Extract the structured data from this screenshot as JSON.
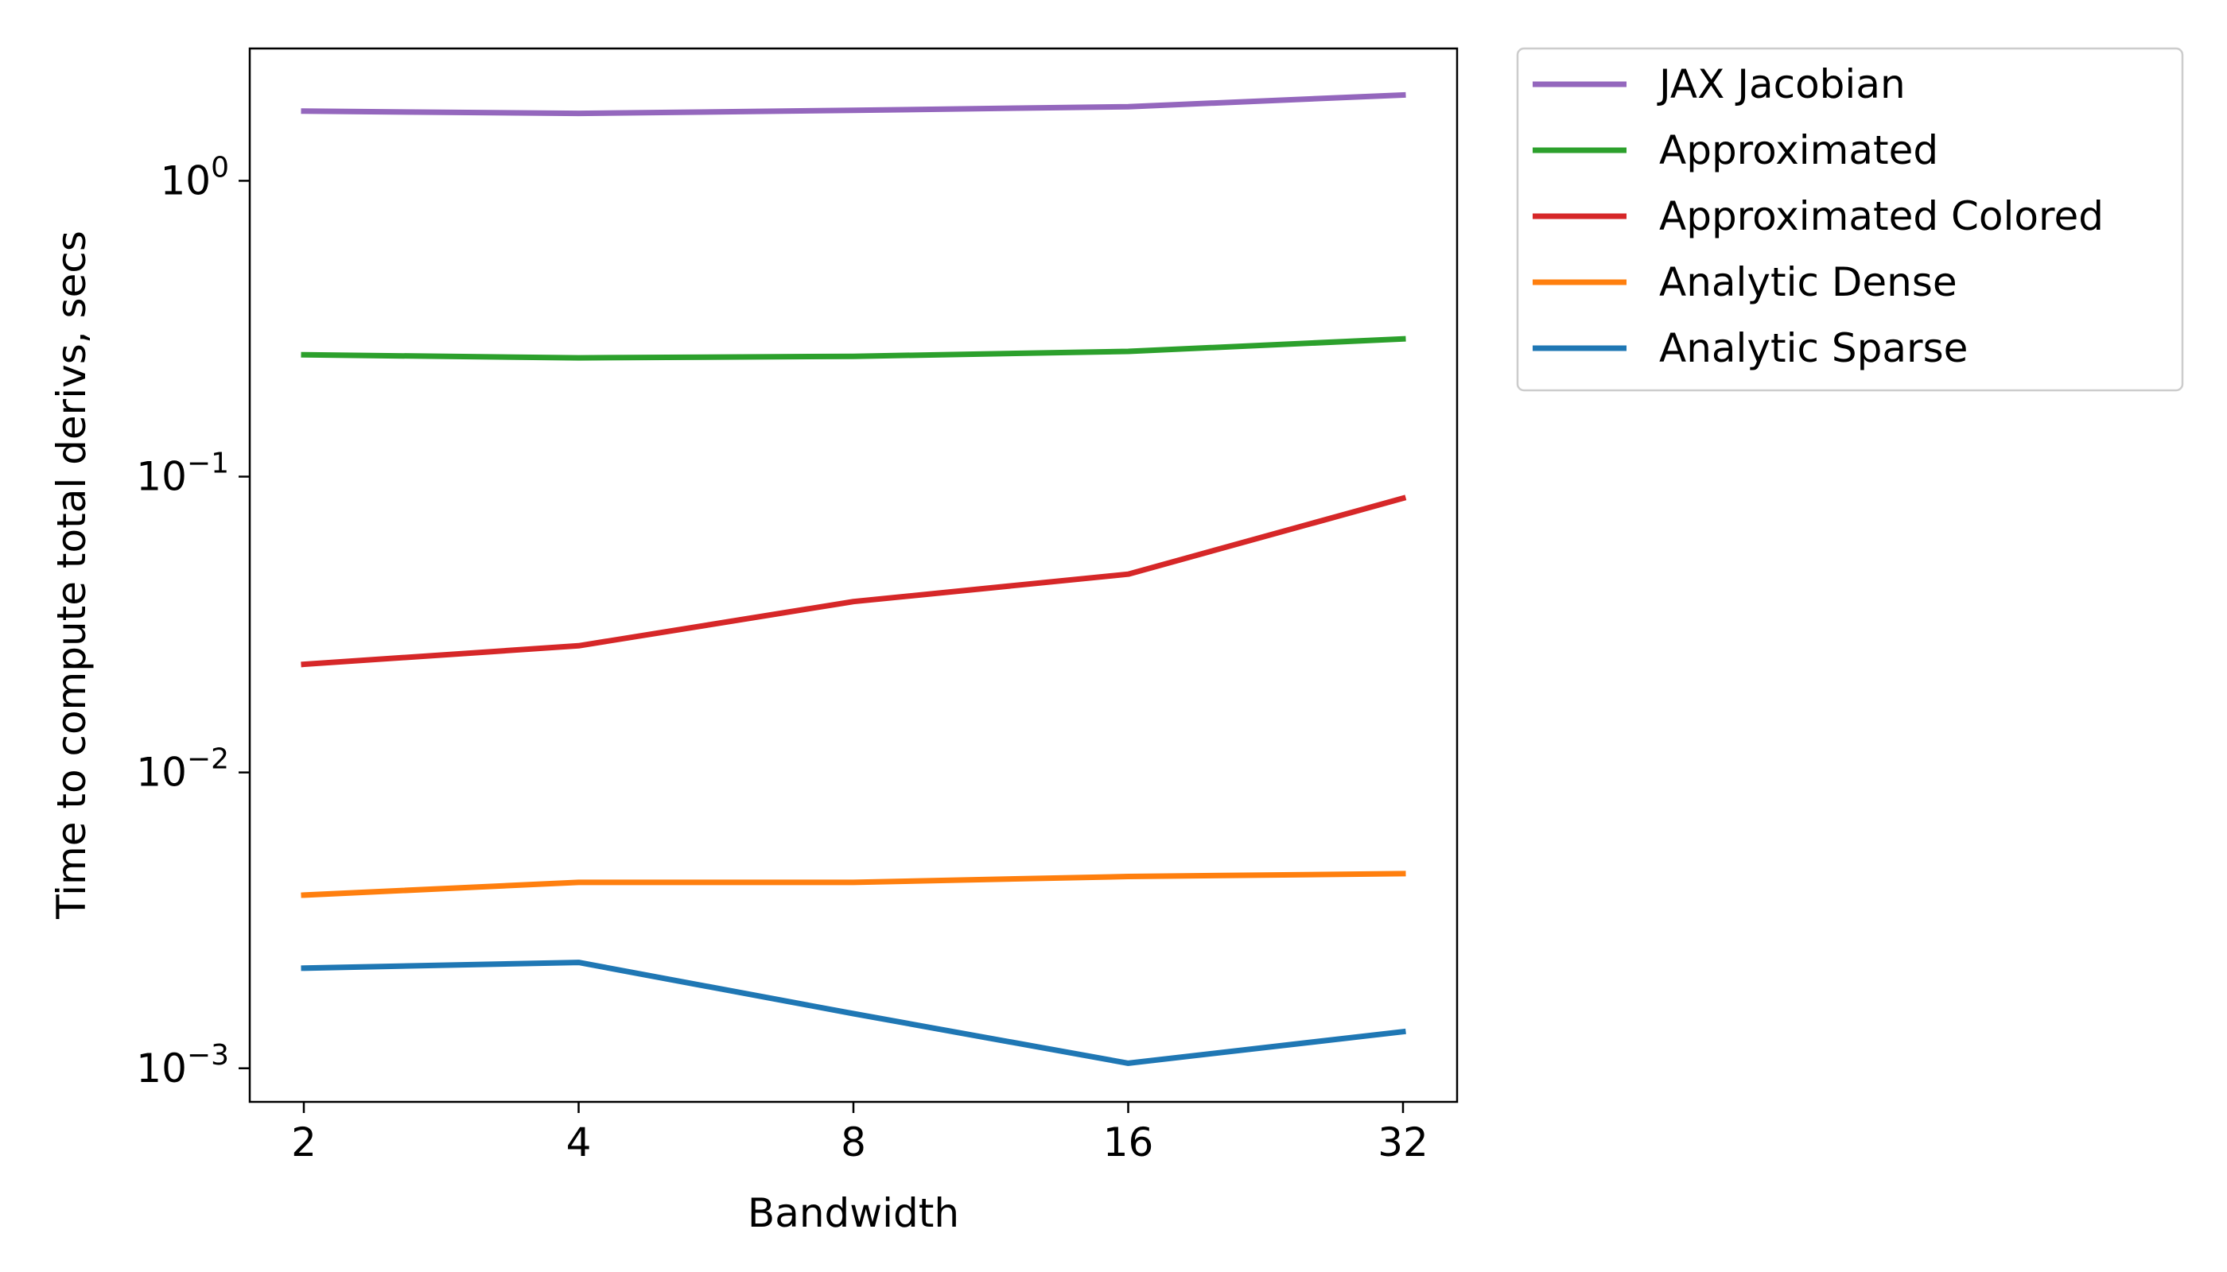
{
  "chart_data": {
    "type": "line",
    "title": "",
    "xlabel": "Bandwidth",
    "ylabel": "Time to compute total derivs, secs",
    "yscale": "log",
    "x": [
      2,
      4,
      8,
      16,
      32
    ],
    "x_tick_labels": [
      "2",
      "4",
      "8",
      "16",
      "32"
    ],
    "y_ticks": [
      {
        "value": 1,
        "base": "10",
        "exp": "0"
      },
      {
        "value": 0.1,
        "base": "10",
        "exp": "−1"
      },
      {
        "value": 0.01,
        "base": "10",
        "exp": "−2"
      },
      {
        "value": 0.001,
        "base": "10",
        "exp": "−3"
      }
    ],
    "ylim": [
      0.00077,
      2.8
    ],
    "grid": false,
    "legend_position": "outside-right-top",
    "series": [
      {
        "name": "JAX Jacobian",
        "color": "#9467bd",
        "values": [
          1.72,
          1.69,
          1.73,
          1.78,
          1.95
        ]
      },
      {
        "name": "Approximated",
        "color": "#2ca02c",
        "values": [
          0.258,
          0.252,
          0.255,
          0.265,
          0.292
        ]
      },
      {
        "name": "Approximated Colored",
        "color": "#d62728",
        "values": [
          0.0232,
          0.0268,
          0.0378,
          0.0468,
          0.0845
        ]
      },
      {
        "name": "Analytic Dense",
        "color": "#ff7f0e",
        "values": [
          0.00385,
          0.00425,
          0.00425,
          0.00445,
          0.00455
        ]
      },
      {
        "name": "Analytic Sparse",
        "color": "#1f77b4",
        "values": [
          0.00218,
          0.00228,
          0.00153,
          0.00104,
          0.00133
        ]
      }
    ]
  }
}
